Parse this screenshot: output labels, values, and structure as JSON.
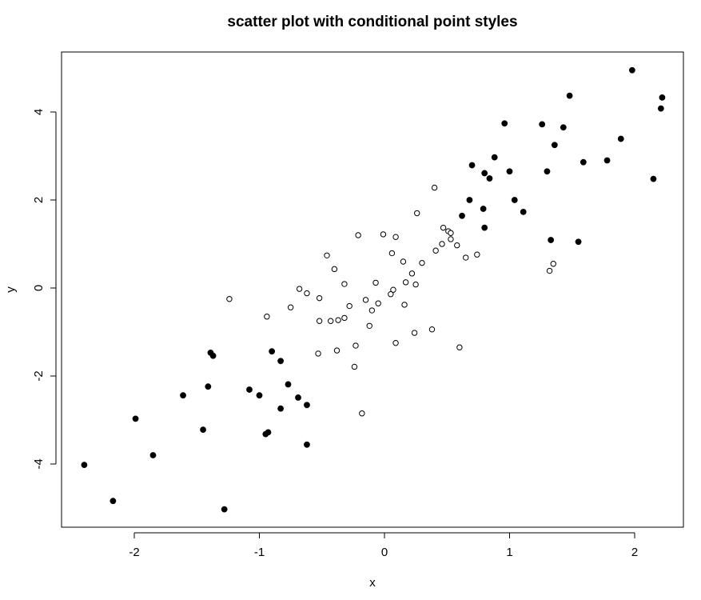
{
  "chart_data": {
    "type": "scatter",
    "title": "scatter plot with conditional point styles",
    "xlabel": "x",
    "ylabel": "y",
    "xlim": [
      -2.6,
      2.4
    ],
    "ylim": [
      -5.4,
      5.4
    ],
    "x_ticks": [
      "-2",
      "-1",
      "0",
      "1",
      "2"
    ],
    "y_ticks": [
      "-4",
      "-2",
      "0",
      "2",
      "4"
    ],
    "grid": false,
    "point_colors": {
      "filled": "#000000",
      "open_stroke": "#000000",
      "open_fill": "#ffffff"
    },
    "series": [
      {
        "style": "filled",
        "points": [
          [
            1.98,
            4.95
          ],
          [
            1.48,
            4.37
          ],
          [
            2.22,
            4.33
          ],
          [
            2.21,
            4.08
          ],
          [
            0.96,
            3.74
          ],
          [
            1.26,
            3.72
          ],
          [
            1.43,
            3.65
          ],
          [
            1.89,
            3.39
          ],
          [
            1.36,
            3.25
          ],
          [
            0.88,
            2.97
          ],
          [
            1.78,
            2.9
          ],
          [
            1.59,
            2.86
          ],
          [
            0.7,
            2.79
          ],
          [
            1.0,
            2.65
          ],
          [
            1.3,
            2.65
          ],
          [
            0.8,
            2.61
          ],
          [
            0.84,
            2.49
          ],
          [
            2.15,
            2.48
          ],
          [
            0.68,
            2.0
          ],
          [
            1.04,
            2.0
          ],
          [
            0.79,
            1.8
          ],
          [
            1.11,
            1.73
          ],
          [
            0.62,
            1.64
          ],
          [
            0.8,
            1.37
          ],
          [
            1.33,
            1.09
          ],
          [
            1.55,
            1.05
          ],
          [
            -1.39,
            -1.47
          ],
          [
            -0.9,
            -1.44
          ],
          [
            -1.37,
            -1.54
          ],
          [
            -0.83,
            -1.66
          ],
          [
            -0.77,
            -2.19
          ],
          [
            -1.41,
            -2.24
          ],
          [
            -1.08,
            -2.31
          ],
          [
            -1.61,
            -2.44
          ],
          [
            -1.0,
            -2.44
          ],
          [
            -0.69,
            -2.49
          ],
          [
            -0.62,
            -2.66
          ],
          [
            -0.83,
            -2.74
          ],
          [
            -1.99,
            -2.97
          ],
          [
            -1.45,
            -3.22
          ],
          [
            -0.93,
            -3.28
          ],
          [
            -0.95,
            -3.32
          ],
          [
            -0.62,
            -3.56
          ],
          [
            -1.85,
            -3.8
          ],
          [
            -2.4,
            -4.02
          ],
          [
            -2.17,
            -4.84
          ],
          [
            -1.28,
            -5.03
          ]
        ]
      },
      {
        "style": "open",
        "points": [
          [
            0.4,
            2.28
          ],
          [
            0.26,
            1.7
          ],
          [
            0.47,
            1.37
          ],
          [
            0.51,
            1.29
          ],
          [
            0.53,
            1.25
          ],
          [
            -0.21,
            1.2
          ],
          [
            -0.01,
            1.22
          ],
          [
            0.09,
            1.16
          ],
          [
            0.53,
            1.11
          ],
          [
            0.46,
            1.0
          ],
          [
            0.58,
            0.97
          ],
          [
            0.41,
            0.85
          ],
          [
            0.06,
            0.79
          ],
          [
            -0.46,
            0.74
          ],
          [
            0.74,
            0.76
          ],
          [
            0.65,
            0.69
          ],
          [
            0.15,
            0.6
          ],
          [
            0.3,
            0.57
          ],
          [
            1.35,
            0.55
          ],
          [
            -0.4,
            0.43
          ],
          [
            1.32,
            0.39
          ],
          [
            0.22,
            0.33
          ],
          [
            0.17,
            0.13
          ],
          [
            0.25,
            0.08
          ],
          [
            -0.07,
            0.12
          ],
          [
            -0.32,
            0.09
          ],
          [
            -0.68,
            -0.02
          ],
          [
            0.07,
            -0.04
          ],
          [
            -0.62,
            -0.12
          ],
          [
            0.05,
            -0.14
          ],
          [
            -0.52,
            -0.23
          ],
          [
            -0.15,
            -0.27
          ],
          [
            -1.24,
            -0.25
          ],
          [
            -0.05,
            -0.35
          ],
          [
            0.16,
            -0.38
          ],
          [
            -0.28,
            -0.41
          ],
          [
            -0.75,
            -0.44
          ],
          [
            -0.1,
            -0.51
          ],
          [
            -0.94,
            -0.65
          ],
          [
            -0.32,
            -0.68
          ],
          [
            -0.37,
            -0.73
          ],
          [
            -0.43,
            -0.75
          ],
          [
            -0.52,
            -0.75
          ],
          [
            -0.12,
            -0.86
          ],
          [
            0.38,
            -0.94
          ],
          [
            0.24,
            -1.02
          ],
          [
            0.09,
            -1.25
          ],
          [
            -0.23,
            -1.31
          ],
          [
            0.6,
            -1.35
          ],
          [
            -0.38,
            -1.42
          ],
          [
            -0.53,
            -1.49
          ],
          [
            -0.24,
            -1.79
          ],
          [
            -0.18,
            -2.85
          ]
        ]
      }
    ]
  }
}
